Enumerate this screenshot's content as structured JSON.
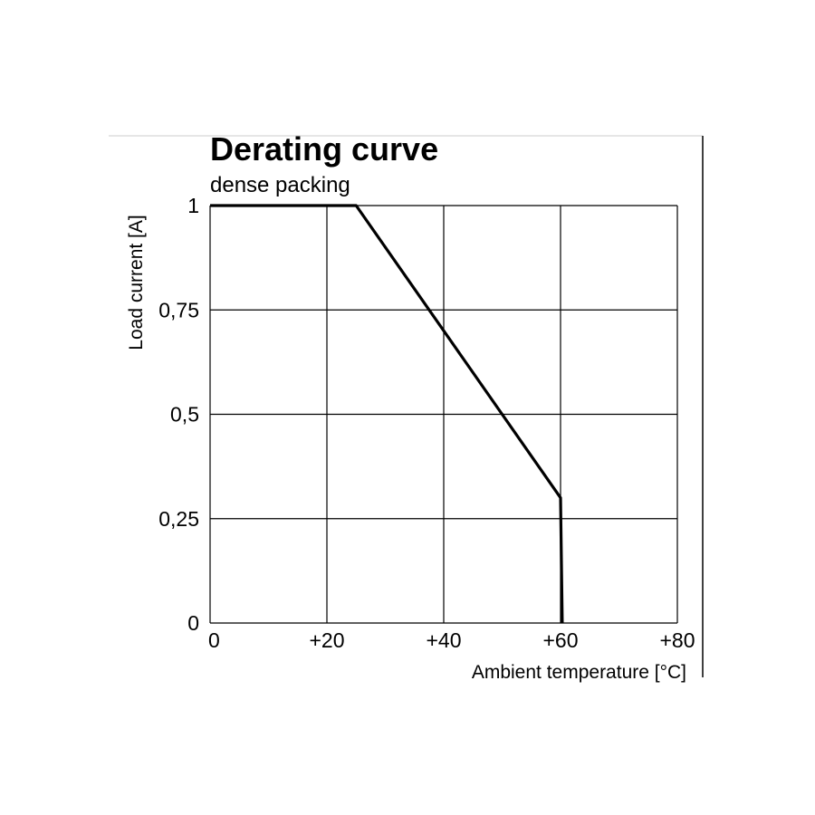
{
  "chart_data": {
    "type": "line",
    "title": "Derating curve",
    "subtitle": "dense packing",
    "xlabel": "Ambient temperature [°C]",
    "ylabel": "Load current [A]",
    "xlim": [
      0,
      80
    ],
    "ylim": [
      0,
      1
    ],
    "x_ticks": [
      "0",
      "+20",
      "+40",
      "+60",
      "+80"
    ],
    "x_tick_values": [
      0,
      20,
      40,
      60,
      80
    ],
    "y_ticks": [
      "0",
      "0,25",
      "0,5",
      "0,75",
      "1"
    ],
    "y_tick_values": [
      0,
      0.25,
      0.5,
      0.75,
      1
    ],
    "grid": true,
    "series": [
      {
        "x": [
          0,
          25,
          60,
          60.3
        ],
        "y": [
          1,
          1,
          0.3,
          0
        ]
      }
    ]
  }
}
